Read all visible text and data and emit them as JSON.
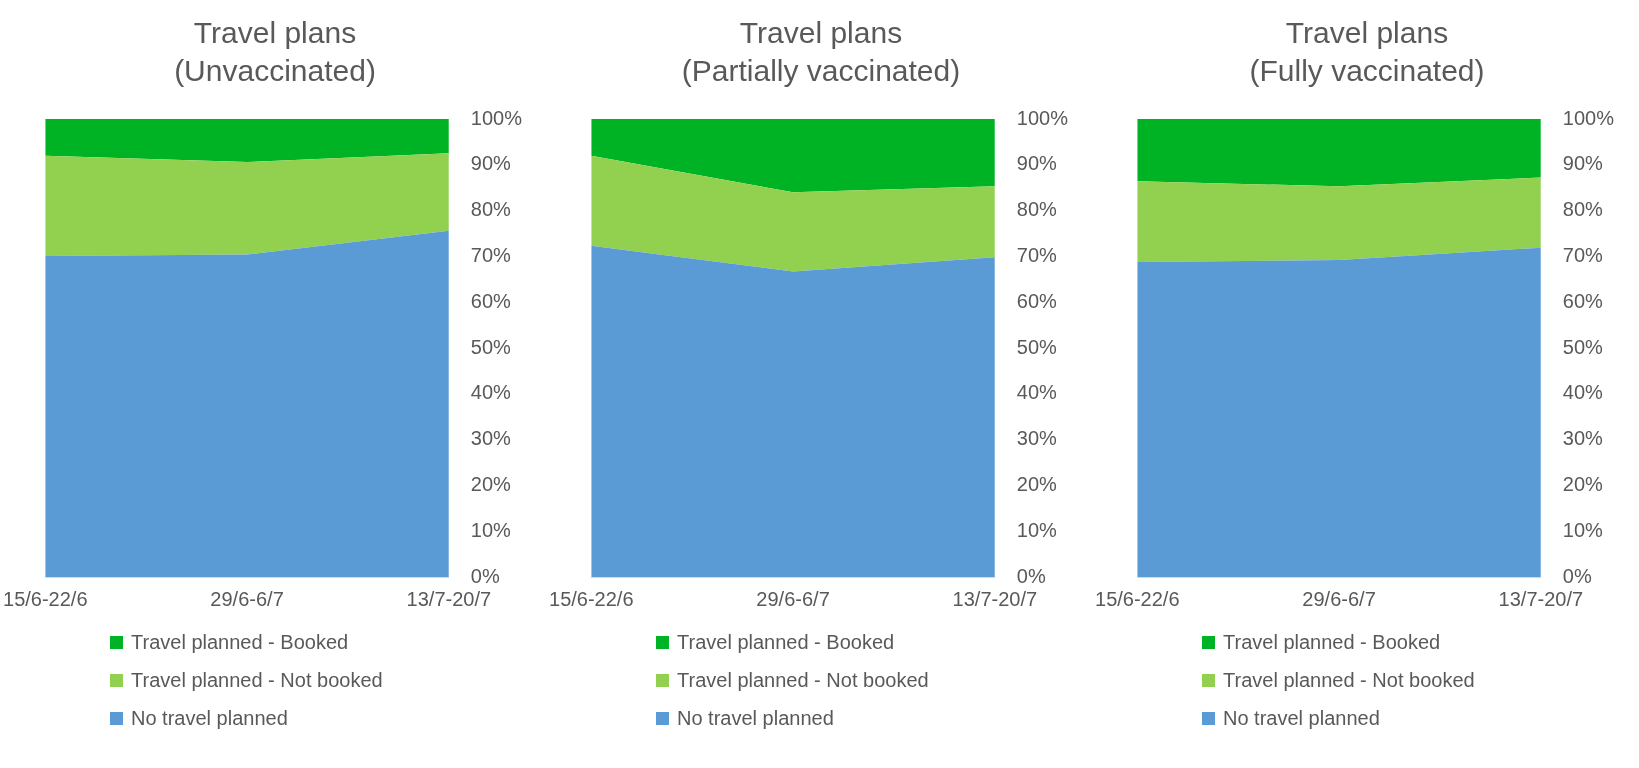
{
  "chart_data": [
    {
      "type": "area",
      "title": "Travel plans\n(Unvaccinated)",
      "categories": [
        "15/6-22/6",
        "29/6-6/7",
        "13/7-20/7"
      ],
      "stacked": true,
      "ylim": [
        0,
        100
      ],
      "yticks": [
        {
          "value": 0,
          "label": "0%"
        },
        {
          "value": 10,
          "label": "10%"
        },
        {
          "value": 20,
          "label": "20%"
        },
        {
          "value": 30,
          "label": "30%"
        },
        {
          "value": 40,
          "label": "40%"
        },
        {
          "value": 50,
          "label": "50%"
        },
        {
          "value": 60,
          "label": "60%"
        },
        {
          "value": 70,
          "label": "70%"
        },
        {
          "value": 80,
          "label": "80%"
        },
        {
          "value": 90,
          "label": "90%"
        },
        {
          "value": 100,
          "label": "100%"
        }
      ],
      "grid": false,
      "legend": "bottom",
      "series": [
        {
          "name": "No travel planned",
          "color": "#5b9bd5",
          "values": [
            70.1,
            70.4,
            75.6
          ]
        },
        {
          "name": "Travel planned - Not booked",
          "color": "#92d050",
          "values": [
            21.9,
            20.2,
            16.9
          ]
        },
        {
          "name": "Travel planned - Booked",
          "color": "#00b324",
          "values": [
            8.0,
            9.4,
            7.5
          ]
        }
      ]
    },
    {
      "type": "area",
      "title": "Travel plans\n(Partially vaccinated)",
      "categories": [
        "15/6-22/6",
        "29/6-6/7",
        "13/7-20/7"
      ],
      "stacked": true,
      "ylim": [
        0,
        100
      ],
      "yticks": [
        {
          "value": 0,
          "label": "0%"
        },
        {
          "value": 10,
          "label": "10%"
        },
        {
          "value": 20,
          "label": "20%"
        },
        {
          "value": 30,
          "label": "30%"
        },
        {
          "value": 40,
          "label": "40%"
        },
        {
          "value": 50,
          "label": "50%"
        },
        {
          "value": 60,
          "label": "60%"
        },
        {
          "value": 70,
          "label": "70%"
        },
        {
          "value": 80,
          "label": "80%"
        },
        {
          "value": 90,
          "label": "90%"
        },
        {
          "value": 100,
          "label": "100%"
        }
      ],
      "grid": false,
      "legend": "bottom",
      "series": [
        {
          "name": "No travel planned",
          "color": "#5b9bd5",
          "values": [
            72.3,
            66.7,
            69.8
          ]
        },
        {
          "name": "Travel planned - Not booked",
          "color": "#92d050",
          "values": [
            19.7,
            17.3,
            15.5
          ]
        },
        {
          "name": "Travel planned - Booked",
          "color": "#00b324",
          "values": [
            8.0,
            16.0,
            14.7
          ]
        }
      ]
    },
    {
      "type": "area",
      "title": "Travel plans\n(Fully vaccinated)",
      "categories": [
        "15/6-22/6",
        "29/6-6/7",
        "13/7-20/7"
      ],
      "stacked": true,
      "ylim": [
        0,
        100
      ],
      "yticks": [
        {
          "value": 0,
          "label": "0%"
        },
        {
          "value": 10,
          "label": "10%"
        },
        {
          "value": 20,
          "label": "20%"
        },
        {
          "value": 30,
          "label": "30%"
        },
        {
          "value": 40,
          "label": "40%"
        },
        {
          "value": 50,
          "label": "50%"
        },
        {
          "value": 60,
          "label": "60%"
        },
        {
          "value": 70,
          "label": "70%"
        },
        {
          "value": 80,
          "label": "80%"
        },
        {
          "value": 90,
          "label": "90%"
        },
        {
          "value": 100,
          "label": "100%"
        }
      ],
      "grid": false,
      "legend": "bottom",
      "series": [
        {
          "name": "No travel planned",
          "color": "#5b9bd5",
          "values": [
            68.8,
            69.2,
            71.9
          ]
        },
        {
          "name": "Travel planned - Not booked",
          "color": "#92d050",
          "values": [
            17.6,
            16.1,
            15.3
          ]
        },
        {
          "name": "Travel planned - Booked",
          "color": "#00b324",
          "values": [
            13.6,
            14.7,
            12.8
          ]
        }
      ]
    }
  ]
}
